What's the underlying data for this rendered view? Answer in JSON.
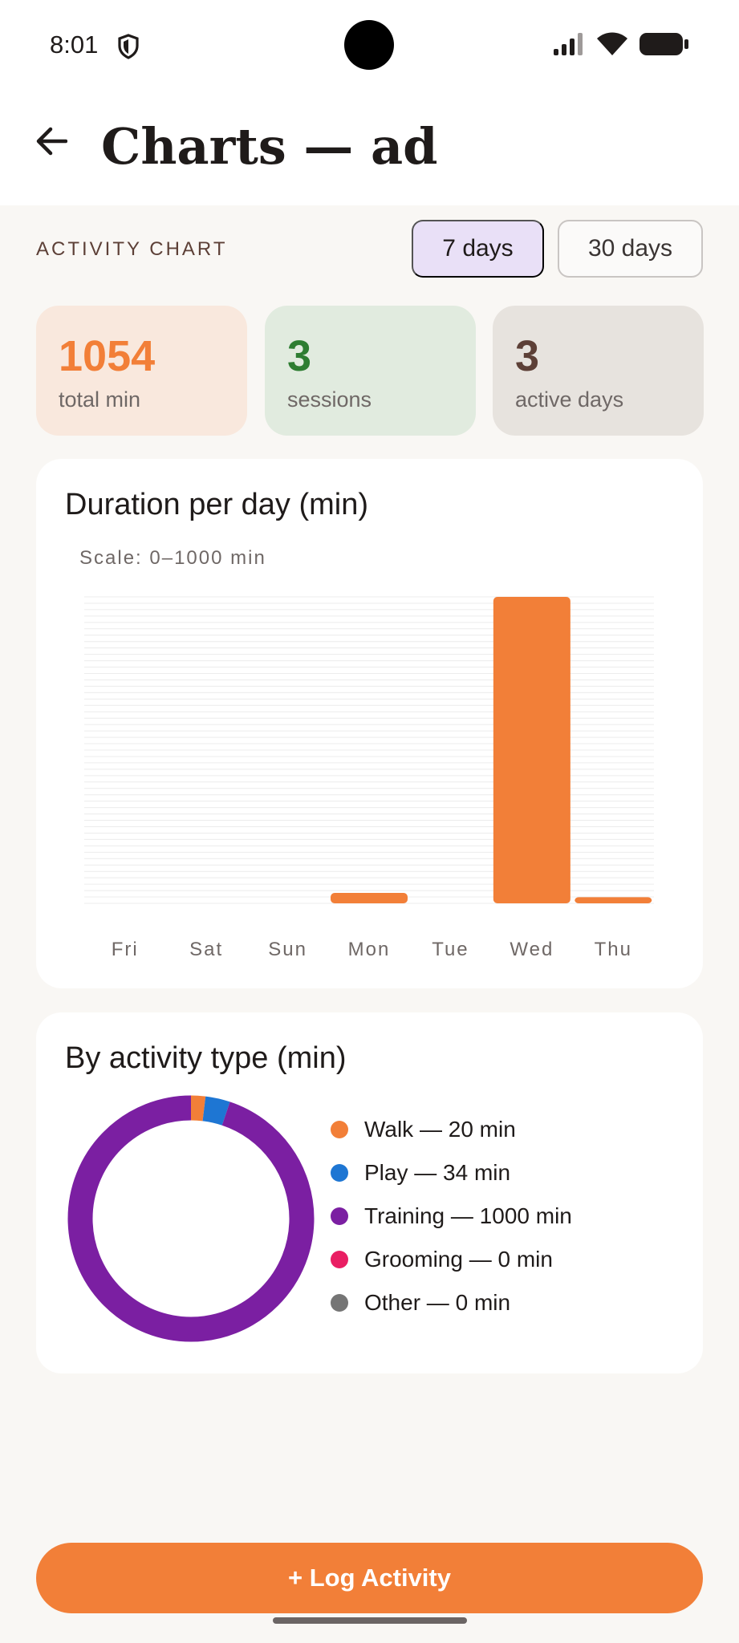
{
  "status_bar": {
    "time": "8:01",
    "left_icon": "shield-icon",
    "right_icons": [
      "signal-icon",
      "wifi-icon",
      "battery-icon"
    ]
  },
  "header": {
    "title": "Charts — ad",
    "back_icon": "arrow-left-icon"
  },
  "activity": {
    "section_label": "ACTIVITY CHART",
    "ranges": [
      {
        "label": "7 days",
        "selected": true
      },
      {
        "label": "30 days",
        "selected": false
      }
    ]
  },
  "stats": [
    {
      "value": "1054",
      "label": "total min",
      "color": "#f27f38"
    },
    {
      "value": "3",
      "label": "sessions",
      "color": "#2e7d32"
    },
    {
      "value": "3",
      "label": "active days",
      "color": "#5d4037"
    }
  ],
  "bar_panel": {
    "title": "Duration per day (min)",
    "scale_note": "Scale: 0–1000 min"
  },
  "donut_panel": {
    "title": "By activity type (min)"
  },
  "chart_data": [
    {
      "type": "bar",
      "title": "Duration per day (min)",
      "categories": [
        "Fri",
        "Sat",
        "Sun",
        "Mon",
        "Tue",
        "Wed",
        "Thu"
      ],
      "values": [
        0,
        0,
        0,
        34,
        0,
        1000,
        20
      ],
      "ylim": [
        0,
        1000
      ],
      "color": "#f27f38",
      "grid": true
    },
    {
      "type": "pie",
      "title": "By activity type (min)",
      "donut": true,
      "slices": [
        {
          "label": "Walk — 20 min",
          "value": 20,
          "color": "#f27f38"
        },
        {
          "label": "Play — 34 min",
          "value": 34,
          "color": "#1e76d3"
        },
        {
          "label": "Training — 1000 min",
          "value": 1000,
          "color": "#7b1fa2"
        },
        {
          "label": "Grooming — 0 min",
          "value": 0,
          "color": "#e91e63"
        },
        {
          "label": "Other — 0 min",
          "value": 0,
          "color": "#757575"
        }
      ],
      "legend": "right"
    }
  ],
  "log_button": {
    "label": "+ Log Activity",
    "color": "#f27f38"
  }
}
